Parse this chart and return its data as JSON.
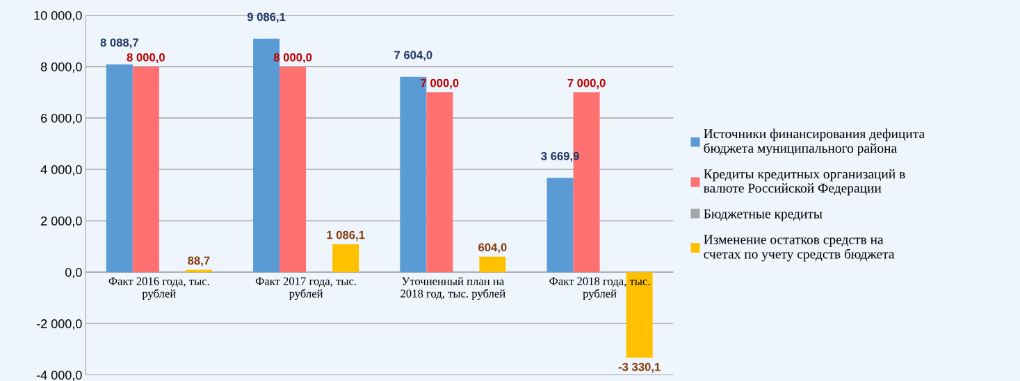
{
  "chart_data": {
    "type": "bar",
    "categories": [
      "Факт 2016 года, тыс. рублей",
      "Факт 2017 года, тыс. рублей",
      "Уточненный план на 2018 год, тыс. рублей",
      "Факт 2018 года, тыс. рублей"
    ],
    "series": [
      {
        "name": "Источники финансирования дефицита бюджета муниципального района",
        "color": "#5b9bd5",
        "values": [
          8088.7,
          9086.1,
          7604.0,
          3669.9
        ],
        "value_labels": [
          "8 088,7",
          "9 086,1",
          "7 604,0",
          "3 669,9"
        ]
      },
      {
        "name": "Кредиты кредитных организаций в валюте Российской Федерации",
        "color": "#ff7171",
        "values": [
          8000.0,
          8000.0,
          7000.0,
          7000.0
        ],
        "value_labels": [
          "8 000,0",
          "8 000,0",
          "7 000,0",
          "7 000,0"
        ]
      },
      {
        "name": "Бюджетные кредиты",
        "color": "#a5a5a5",
        "values": [
          0,
          0,
          0,
          0
        ],
        "value_labels": [
          null,
          null,
          null,
          null
        ]
      },
      {
        "name": "Изменение остатков средств на счетах по учету средств бюджета",
        "color": "#ffc000",
        "values": [
          88.7,
          1086.1,
          604.0,
          -3330.1
        ],
        "value_labels": [
          "88,7",
          "1 086,1",
          "604,0",
          "-3 330,1"
        ]
      }
    ],
    "ylim": [
      -4000,
      10000
    ],
    "yticks": [
      {
        "value": -4000,
        "label": "-4 000,0"
      },
      {
        "value": -2000,
        "label": "-2 000,0"
      },
      {
        "value": 0,
        "label": "0,0"
      },
      {
        "value": 2000,
        "label": "2 000,0"
      },
      {
        "value": 4000,
        "label": "4 000,0"
      },
      {
        "value": 6000,
        "label": "6 000,0"
      },
      {
        "value": 8000,
        "label": "8 000,0"
      },
      {
        "value": 10000,
        "label": "10 000,0"
      }
    ],
    "grid": "y",
    "legend": "right"
  }
}
